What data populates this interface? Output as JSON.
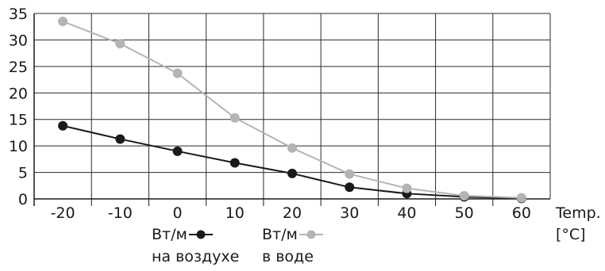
{
  "chart_data": {
    "type": "line",
    "title": "",
    "xlabel": [
      "Temp.",
      "[°C]"
    ],
    "ylabel": "",
    "x": [
      -20,
      -10,
      0,
      10,
      20,
      30,
      40,
      50,
      60
    ],
    "xlim": [
      -25,
      65
    ],
    "ylim": [
      0,
      35
    ],
    "x_ticks": [
      -20,
      -10,
      0,
      10,
      20,
      30,
      40,
      50,
      60
    ],
    "y_ticks": [
      0,
      5,
      10,
      15,
      20,
      25,
      30,
      35
    ],
    "grid": true,
    "legend_position": "bottom",
    "series": [
      {
        "name": [
          "Вт/м",
          "на воздухе"
        ],
        "color": "#1a1a1a",
        "values": [
          13.8,
          11.3,
          9.0,
          6.8,
          4.8,
          2.2,
          1.0,
          0.4,
          0.1
        ]
      },
      {
        "name": [
          "Вт/м",
          "в воде"
        ],
        "color": "#b4b4b4",
        "values": [
          33.5,
          29.3,
          23.7,
          15.3,
          9.6,
          4.7,
          2.0,
          0.6,
          0.2
        ]
      }
    ]
  }
}
